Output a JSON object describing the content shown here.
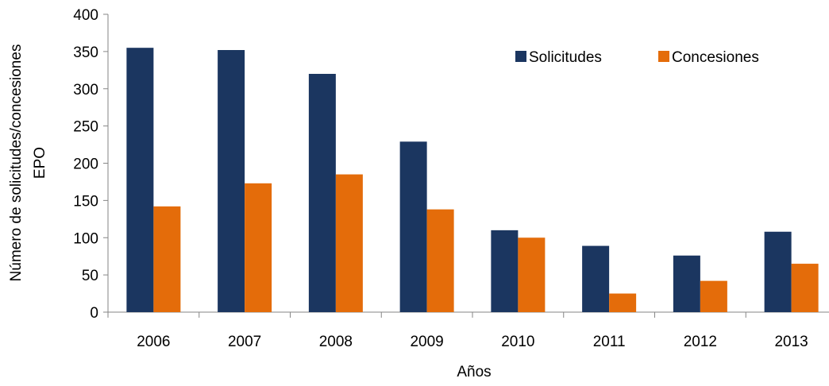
{
  "chart_data": {
    "type": "bar",
    "title": "",
    "xlabel": "Años",
    "ylabel_lines": [
      "Número de solicitudes/concesiones",
      "EPO"
    ],
    "categories": [
      "2006",
      "2007",
      "2008",
      "2009",
      "2010",
      "2011",
      "2012",
      "2013"
    ],
    "series": [
      {
        "name": "Solicitudes",
        "color": "#1b3660",
        "values": [
          355,
          352,
          320,
          229,
          110,
          89,
          76,
          108
        ]
      },
      {
        "name": "Concesiones",
        "color": "#e46c0a",
        "values": [
          142,
          173,
          185,
          138,
          100,
          25,
          42,
          65
        ]
      }
    ],
    "ylim": [
      0,
      400
    ],
    "yticks": [
      0,
      50,
      100,
      150,
      200,
      250,
      300,
      350,
      400
    ],
    "grid": false,
    "legend_position": "top-right"
  }
}
